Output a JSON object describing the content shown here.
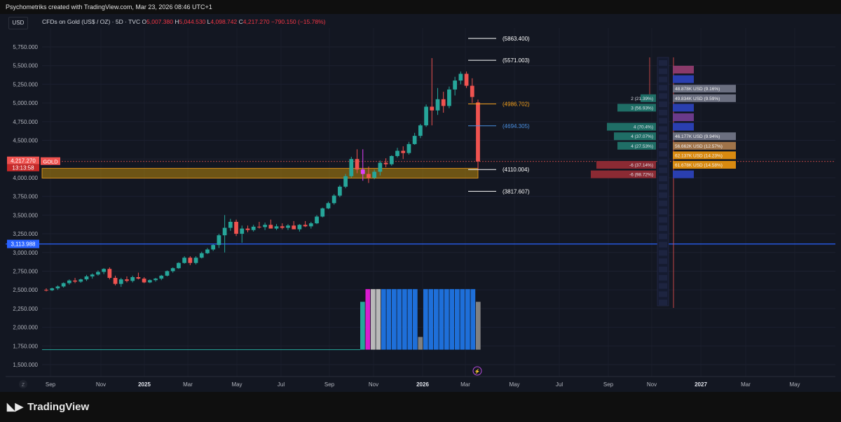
{
  "header": {
    "attribution": "Psychometriks created with TradingView.com, Mar 23, 2026 08:46 UTC+1"
  },
  "currency_button": "USD",
  "legend": {
    "symbol": "CFDs on Gold (US$ / OZ) · 5D · TVC",
    "open_label": "O",
    "open": "5,007.380",
    "high_label": "H",
    "high": "5,044.530",
    "low_label": "L",
    "low": "4,098.742",
    "close_label": "C",
    "close": "4,217.270",
    "change": "−790.150 (−15.78%)"
  },
  "colors": {
    "up": "#26a69a",
    "down": "#ef5350",
    "accent_blue": "#2962ff",
    "orange": "#f7a21b",
    "zone": "#b8860b"
  },
  "price_axis": {
    "ticks": [
      "5,750.000",
      "5,500.000",
      "5,250.000",
      "5,000.000",
      "4,750.000",
      "4,500.000",
      "4,250.000",
      "4,000.000",
      "3,750.000",
      "3,500.000",
      "3,250.000",
      "3,000.000",
      "2,750.000",
      "2,500.000",
      "2,250.000",
      "2,000.000",
      "1,750.000",
      "1,500.000"
    ],
    "current_price": "4,217.270",
    "countdown": "13:13:58",
    "symbol_tag": "GOLD",
    "hline_label": "3,113.988"
  },
  "time_axis": {
    "labels": [
      "Sep",
      "Nov",
      "2025",
      "Mar",
      "May",
      "Jul",
      "Sep",
      "Nov",
      "2026",
      "Mar",
      "May",
      "Jul",
      "Sep",
      "Nov",
      "2027",
      "Mar",
      "May"
    ],
    "badge": "Z"
  },
  "levels": [
    {
      "label": "(5863.400)",
      "value": 5863.4,
      "color": "#ffffff"
    },
    {
      "label": "(5571.003)",
      "value": 5571.0,
      "color": "#ffffff"
    },
    {
      "label": "(4986.702)",
      "value": 4986.7,
      "color": "#f7a21b"
    },
    {
      "label": "(4694.305)",
      "value": 4694.3,
      "color": "#4a90e2"
    },
    {
      "label": "(4110.004)",
      "value": 4110.0,
      "color": "#ffffff"
    },
    {
      "label": "(3817.607)",
      "value": 3817.6,
      "color": "#ffffff"
    }
  ],
  "profile_rows": [
    {
      "left": "",
      "right": "",
      "rcolor": "#8a3a6a"
    },
    {
      "left": "",
      "right": "",
      "rcolor": "#2a3fb0"
    },
    {
      "left": "",
      "right": "48.878K USD (9.16%)",
      "rcolor": "#6b6f80"
    },
    {
      "left": "2 (21.39%)",
      "right": "49.834K USD (9.59%)",
      "rcolor": "#6b6f80"
    },
    {
      "left": "3 (56.93%)",
      "right": "",
      "rcolor": "#2a3fb0"
    },
    {
      "left": "",
      "right": "",
      "rcolor": "#6a3a8a"
    },
    {
      "left": "4 (70.4%)",
      "right": "",
      "rcolor": "#2a3fb0"
    },
    {
      "left": "4 (37.07%)",
      "right": "46.177K USD (9.94%)",
      "rcolor": "#6b6f80"
    },
    {
      "left": "4 (27.53%)",
      "right": "56.662K USD (12.57%)",
      "rcolor": "#a0744a"
    },
    {
      "left": "",
      "right": "62.137K USD (14.23%)",
      "rcolor": "#d98a10"
    },
    {
      "left": "-6 (37.14%)",
      "right": "61.678K USD (14.58%)",
      "rcolor": "#d98a10"
    },
    {
      "left": "-6 (98.72%)",
      "right": "",
      "rcolor": "#2a3fb0"
    }
  ],
  "chart_data": {
    "type": "candlestick",
    "title": "CFDs on Gold (US$ / OZ)",
    "timeframe": "5D",
    "ylim": [
      1400,
      5950
    ],
    "candles": [
      {
        "o": 2500,
        "h": 2520,
        "l": 2480,
        "c": 2495
      },
      {
        "o": 2495,
        "h": 2530,
        "l": 2485,
        "c": 2520
      },
      {
        "o": 2520,
        "h": 2560,
        "l": 2500,
        "c": 2545
      },
      {
        "o": 2545,
        "h": 2600,
        "l": 2530,
        "c": 2590
      },
      {
        "o": 2590,
        "h": 2640,
        "l": 2570,
        "c": 2625
      },
      {
        "o": 2625,
        "h": 2660,
        "l": 2590,
        "c": 2610
      },
      {
        "o": 2610,
        "h": 2650,
        "l": 2595,
        "c": 2640
      },
      {
        "o": 2640,
        "h": 2700,
        "l": 2620,
        "c": 2680
      },
      {
        "o": 2680,
        "h": 2720,
        "l": 2650,
        "c": 2705
      },
      {
        "o": 2705,
        "h": 2760,
        "l": 2690,
        "c": 2740
      },
      {
        "o": 2740,
        "h": 2790,
        "l": 2710,
        "c": 2780
      },
      {
        "o": 2780,
        "h": 2800,
        "l": 2640,
        "c": 2660
      },
      {
        "o": 2660,
        "h": 2690,
        "l": 2560,
        "c": 2580
      },
      {
        "o": 2580,
        "h": 2660,
        "l": 2540,
        "c": 2640
      },
      {
        "o": 2640,
        "h": 2680,
        "l": 2600,
        "c": 2620
      },
      {
        "o": 2620,
        "h": 2690,
        "l": 2600,
        "c": 2670
      },
      {
        "o": 2670,
        "h": 2730,
        "l": 2640,
        "c": 2650
      },
      {
        "o": 2650,
        "h": 2670,
        "l": 2590,
        "c": 2600
      },
      {
        "o": 2600,
        "h": 2640,
        "l": 2590,
        "c": 2630
      },
      {
        "o": 2630,
        "h": 2660,
        "l": 2610,
        "c": 2650
      },
      {
        "o": 2650,
        "h": 2700,
        "l": 2630,
        "c": 2690
      },
      {
        "o": 2690,
        "h": 2760,
        "l": 2680,
        "c": 2750
      },
      {
        "o": 2750,
        "h": 2800,
        "l": 2730,
        "c": 2790
      },
      {
        "o": 2790,
        "h": 2870,
        "l": 2780,
        "c": 2860
      },
      {
        "o": 2860,
        "h": 2950,
        "l": 2850,
        "c": 2930
      },
      {
        "o": 2930,
        "h": 2950,
        "l": 2830,
        "c": 2860
      },
      {
        "o": 2860,
        "h": 2950,
        "l": 2840,
        "c": 2930
      },
      {
        "o": 2930,
        "h": 3010,
        "l": 2920,
        "c": 2990
      },
      {
        "o": 2990,
        "h": 3060,
        "l": 2980,
        "c": 3040
      },
      {
        "o": 3040,
        "h": 3110,
        "l": 3020,
        "c": 3100
      },
      {
        "o": 3100,
        "h": 3250,
        "l": 3060,
        "c": 3230
      },
      {
        "o": 3230,
        "h": 3500,
        "l": 3000,
        "c": 3330
      },
      {
        "o": 3330,
        "h": 3450,
        "l": 3290,
        "c": 3410
      },
      {
        "o": 3410,
        "h": 3440,
        "l": 3220,
        "c": 3250
      },
      {
        "o": 3250,
        "h": 3360,
        "l": 3130,
        "c": 3320
      },
      {
        "o": 3320,
        "h": 3360,
        "l": 3270,
        "c": 3300
      },
      {
        "o": 3300,
        "h": 3370,
        "l": 3280,
        "c": 3345
      },
      {
        "o": 3345,
        "h": 3410,
        "l": 3320,
        "c": 3340
      },
      {
        "o": 3340,
        "h": 3400,
        "l": 3300,
        "c": 3370
      },
      {
        "o": 3370,
        "h": 3440,
        "l": 3330,
        "c": 3320
      },
      {
        "o": 3320,
        "h": 3380,
        "l": 3300,
        "c": 3350
      },
      {
        "o": 3350,
        "h": 3390,
        "l": 3310,
        "c": 3330
      },
      {
        "o": 3330,
        "h": 3380,
        "l": 3300,
        "c": 3360
      },
      {
        "o": 3360,
        "h": 3420,
        "l": 3320,
        "c": 3310
      },
      {
        "o": 3310,
        "h": 3380,
        "l": 3280,
        "c": 3370
      },
      {
        "o": 3370,
        "h": 3420,
        "l": 3340,
        "c": 3350
      },
      {
        "o": 3350,
        "h": 3410,
        "l": 3320,
        "c": 3390
      },
      {
        "o": 3390,
        "h": 3500,
        "l": 3380,
        "c": 3480
      },
      {
        "o": 3480,
        "h": 3600,
        "l": 3470,
        "c": 3590
      },
      {
        "o": 3590,
        "h": 3680,
        "l": 3580,
        "c": 3660
      },
      {
        "o": 3660,
        "h": 3780,
        "l": 3640,
        "c": 3760
      },
      {
        "o": 3760,
        "h": 3900,
        "l": 3740,
        "c": 3880
      },
      {
        "o": 3880,
        "h": 4050,
        "l": 3860,
        "c": 4020
      },
      {
        "o": 4020,
        "h": 4280,
        "l": 4000,
        "c": 4250
      },
      {
        "o": 4250,
        "h": 4380,
        "l": 4060,
        "c": 4110
      },
      {
        "o": 4110,
        "h": 4380,
        "l": 3960,
        "c": 4050
      },
      {
        "o": 4050,
        "h": 4150,
        "l": 3930,
        "c": 4000
      },
      {
        "o": 4000,
        "h": 4110,
        "l": 3980,
        "c": 4080
      },
      {
        "o": 4080,
        "h": 4230,
        "l": 4030,
        "c": 4200
      },
      {
        "o": 4200,
        "h": 4260,
        "l": 4140,
        "c": 4180
      },
      {
        "o": 4180,
        "h": 4300,
        "l": 4160,
        "c": 4290
      },
      {
        "o": 4290,
        "h": 4400,
        "l": 4270,
        "c": 4360
      },
      {
        "o": 4360,
        "h": 4420,
        "l": 4250,
        "c": 4330
      },
      {
        "o": 4330,
        "h": 4480,
        "l": 4310,
        "c": 4450
      },
      {
        "o": 4450,
        "h": 4600,
        "l": 4440,
        "c": 4560
      },
      {
        "o": 4560,
        "h": 4720,
        "l": 4530,
        "c": 4700
      },
      {
        "o": 4700,
        "h": 4980,
        "l": 4680,
        "c": 4950
      },
      {
        "o": 4950,
        "h": 5600,
        "l": 4700,
        "c": 4900
      },
      {
        "o": 4900,
        "h": 5200,
        "l": 4840,
        "c": 5050
      },
      {
        "o": 5050,
        "h": 5150,
        "l": 4870,
        "c": 4960
      },
      {
        "o": 4960,
        "h": 5220,
        "l": 4930,
        "c": 5180
      },
      {
        "o": 5180,
        "h": 5350,
        "l": 5100,
        "c": 5300
      },
      {
        "o": 5300,
        "h": 5420,
        "l": 5250,
        "c": 5390
      },
      {
        "o": 5390,
        "h": 5420,
        "l": 5200,
        "c": 5230
      },
      {
        "o": 5230,
        "h": 5330,
        "l": 5000,
        "c": 5080
      },
      {
        "o": 5007.38,
        "h": 5044.53,
        "l": 4098.742,
        "c": 4217.27
      }
    ],
    "support_zone": [
      3995,
      4125
    ],
    "horizontal_line": 3113.988,
    "indicator_bars": {
      "baseline": 1700,
      "top": 2510,
      "colors": [
        "#26a69a",
        "#d81bcf",
        "#b9b9b9",
        "#b9b9b9",
        "#1e6fd9",
        "#1e6fd9",
        "#1e6fd9",
        "#1e6fd9",
        "#1e6fd9",
        "#1e6fd9",
        "#1e6fd9",
        "#808080",
        "#1e6fd9",
        "#1e6fd9",
        "#1e6fd9",
        "#1e6fd9",
        "#1e6fd9",
        "#1e6fd9",
        "#1e6fd9",
        "#1e6fd9",
        "#1e6fd9",
        "#1e6fd9",
        "#808080"
      ],
      "values": [
        2340,
        2510,
        2510,
        2510,
        2510,
        2510,
        2510,
        2510,
        2510,
        2510,
        2510,
        1870,
        2510,
        2510,
        2510,
        2510,
        2510,
        2510,
        2510,
        2510,
        2510,
        2510,
        2340
      ]
    }
  }
}
